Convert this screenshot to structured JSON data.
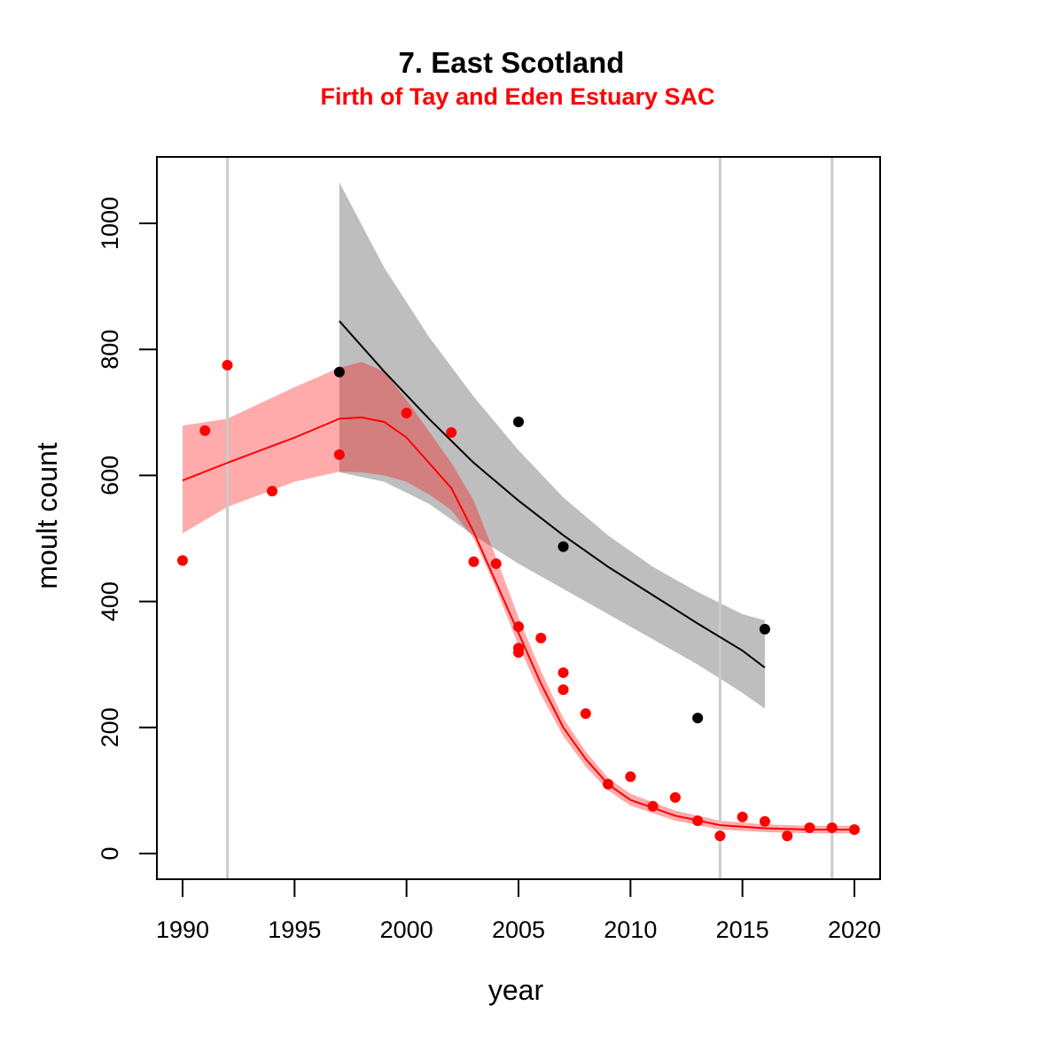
{
  "chart_data": {
    "type": "scatter",
    "title": "7. East Scotland",
    "subtitle": "Firth of Tay and Eden Estuary SAC",
    "xlabel": "year",
    "ylabel": "moult count",
    "xlim": [
      1990,
      2020
    ],
    "ylim": [
      0,
      1000
    ],
    "xticks": [
      "1990",
      "1995",
      "2000",
      "2005",
      "2010",
      "2015",
      "2020"
    ],
    "yticks": [
      "0",
      "200",
      "400",
      "600",
      "800",
      "1000"
    ],
    "grid": false,
    "reference_lines_x": [
      1992,
      2014,
      2019
    ],
    "colors": {
      "red": "#ff0000",
      "red_band": "#ff9999",
      "black": "#000000",
      "grey_band": "#bebebe",
      "ref_line": "#cccccc",
      "subtitle": "#ff0000"
    },
    "series": [
      {
        "name": "red",
        "points": [
          [
            1990,
            465
          ],
          [
            1991,
            671
          ],
          [
            1992,
            775
          ],
          [
            1994,
            575
          ],
          [
            1997,
            633
          ],
          [
            2000,
            699
          ],
          [
            2002,
            668
          ],
          [
            2003,
            463
          ],
          [
            2004,
            460
          ],
          [
            2005,
            360
          ],
          [
            2005,
            326
          ],
          [
            2005,
            319
          ],
          [
            2006,
            342
          ],
          [
            2007,
            287
          ],
          [
            2007,
            260
          ],
          [
            2008,
            222
          ],
          [
            2009,
            110
          ],
          [
            2010,
            122
          ],
          [
            2011,
            75
          ],
          [
            2012,
            89
          ],
          [
            2013,
            52
          ],
          [
            2014,
            28
          ],
          [
            2015,
            58
          ],
          [
            2016,
            51
          ],
          [
            2017,
            28
          ],
          [
            2018,
            41
          ],
          [
            2019,
            41
          ],
          [
            2020,
            38
          ]
        ],
        "fit": [
          [
            1990,
            592
          ],
          [
            1992,
            620
          ],
          [
            1995,
            660
          ],
          [
            1997,
            690
          ],
          [
            1998,
            692
          ],
          [
            1999,
            685
          ],
          [
            2000,
            660
          ],
          [
            2001,
            620
          ],
          [
            2002,
            580
          ],
          [
            2003,
            510
          ],
          [
            2004,
            430
          ],
          [
            2005,
            350
          ],
          [
            2006,
            270
          ],
          [
            2007,
            200
          ],
          [
            2008,
            150
          ],
          [
            2009,
            110
          ],
          [
            2010,
            85
          ],
          [
            2012,
            60
          ],
          [
            2014,
            45
          ],
          [
            2016,
            40
          ],
          [
            2018,
            38
          ],
          [
            2020,
            38
          ]
        ],
        "band_upper": [
          [
            1990,
            679
          ],
          [
            1992,
            690
          ],
          [
            1995,
            740
          ],
          [
            1997,
            771
          ],
          [
            1998,
            780
          ],
          [
            1999,
            765
          ],
          [
            2000,
            720
          ],
          [
            2001,
            670
          ],
          [
            2002,
            620
          ],
          [
            2003,
            560
          ],
          [
            2004,
            470
          ],
          [
            2005,
            375
          ],
          [
            2006,
            290
          ],
          [
            2007,
            215
          ],
          [
            2008,
            162
          ],
          [
            2009,
            120
          ],
          [
            2010,
            95
          ],
          [
            2012,
            68
          ],
          [
            2014,
            52
          ],
          [
            2016,
            46
          ],
          [
            2018,
            44
          ],
          [
            2020,
            44
          ]
        ],
        "band_lower": [
          [
            1990,
            508
          ],
          [
            1992,
            550
          ],
          [
            1995,
            590
          ],
          [
            1997,
            606
          ],
          [
            1998,
            605
          ],
          [
            1999,
            600
          ],
          [
            2000,
            590
          ],
          [
            2001,
            570
          ],
          [
            2002,
            545
          ],
          [
            2003,
            500
          ],
          [
            2004,
            420
          ],
          [
            2005,
            330
          ],
          [
            2006,
            252
          ],
          [
            2007,
            186
          ],
          [
            2008,
            138
          ],
          [
            2009,
            100
          ],
          [
            2010,
            76
          ],
          [
            2012,
            52
          ],
          [
            2014,
            38
          ],
          [
            2016,
            34
          ],
          [
            2018,
            32
          ],
          [
            2020,
            32
          ]
        ]
      },
      {
        "name": "black",
        "points": [
          [
            1997,
            764
          ],
          [
            2005,
            685
          ],
          [
            2007,
            487
          ],
          [
            2013,
            215
          ],
          [
            2016,
            356
          ]
        ],
        "fit": [
          [
            1997,
            845
          ],
          [
            1999,
            765
          ],
          [
            2001,
            690
          ],
          [
            2003,
            620
          ],
          [
            2005,
            560
          ],
          [
            2007,
            505
          ],
          [
            2009,
            455
          ],
          [
            2011,
            410
          ],
          [
            2013,
            365
          ],
          [
            2015,
            322
          ],
          [
            2016,
            295
          ]
        ],
        "band_upper": [
          [
            1997,
            1065
          ],
          [
            1999,
            930
          ],
          [
            2001,
            820
          ],
          [
            2003,
            725
          ],
          [
            2005,
            640
          ],
          [
            2007,
            565
          ],
          [
            2009,
            505
          ],
          [
            2011,
            455
          ],
          [
            2013,
            415
          ],
          [
            2015,
            380
          ],
          [
            2016,
            370
          ]
        ],
        "band_lower": [
          [
            1997,
            605
          ],
          [
            1999,
            590
          ],
          [
            2001,
            555
          ],
          [
            2003,
            505
          ],
          [
            2005,
            460
          ],
          [
            2007,
            420
          ],
          [
            2009,
            380
          ],
          [
            2011,
            340
          ],
          [
            2013,
            300
          ],
          [
            2015,
            255
          ],
          [
            2016,
            230
          ]
        ]
      }
    ]
  }
}
